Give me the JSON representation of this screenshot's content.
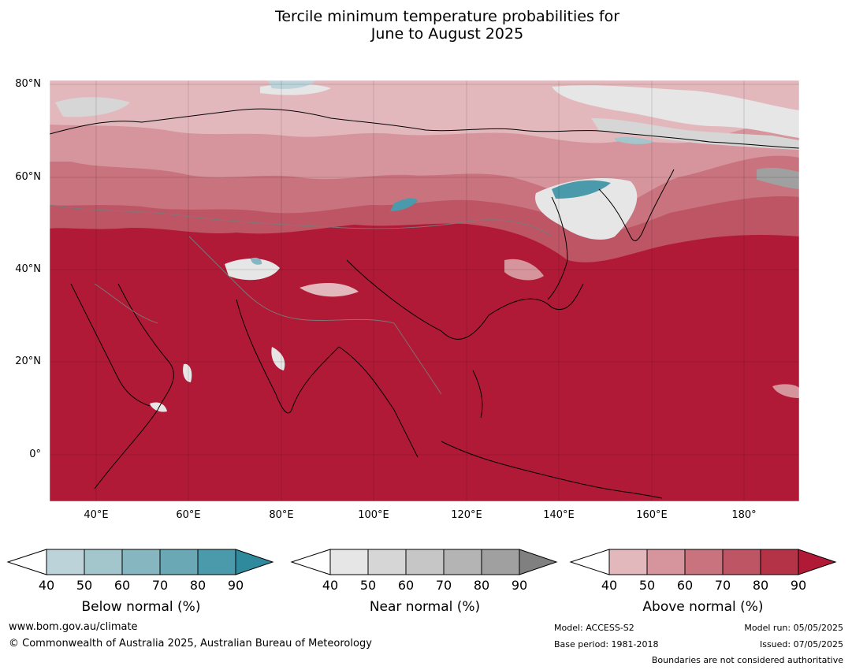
{
  "title": {
    "line1": "Tercile minimum temperature probabilities for",
    "line2": "June to August 2025"
  },
  "axes": {
    "lat_labels": [
      "80°N",
      "60°N",
      "40°N",
      "20°N",
      "0°"
    ],
    "lon_labels": [
      "40°E",
      "60°E",
      "80°E",
      "100°E",
      "120°E",
      "140°E",
      "160°E",
      "180°"
    ]
  },
  "legends": [
    {
      "title": "Below normal (%)",
      "ticks": [
        "40",
        "50",
        "60",
        "70",
        "80",
        "90"
      ],
      "colors": [
        "#ffffff",
        "#bdd3da",
        "#a3c5cc",
        "#86b7c1",
        "#6aa8b6",
        "#4a9aab",
        "#2f8a9e"
      ]
    },
    {
      "title": "Near normal (%)",
      "ticks": [
        "40",
        "50",
        "60",
        "70",
        "80",
        "90"
      ],
      "colors": [
        "#ffffff",
        "#e6e6e6",
        "#d6d6d6",
        "#c6c6c6",
        "#b4b4b4",
        "#a0a0a0",
        "#808080"
      ]
    },
    {
      "title": "Above normal (%)",
      "ticks": [
        "40",
        "50",
        "60",
        "70",
        "80",
        "90"
      ],
      "colors": [
        "#ffffff",
        "#e3b8bd",
        "#d6959d",
        "#c9737f",
        "#bd5565",
        "#b53347",
        "#b01a37"
      ]
    }
  ],
  "footer": {
    "url": "www.bom.gov.au/climate",
    "copyright": "© Commonwealth of Australia 2025, Australian Bureau of Meteorology",
    "model": "Model: ACCESS-S2",
    "base_period": "Base period: 1981-2018",
    "model_run": "Model run: 05/05/2025",
    "issued": "Issued: 07/05/2025",
    "disclaimer": "Boundaries are not considered authoritative"
  }
}
